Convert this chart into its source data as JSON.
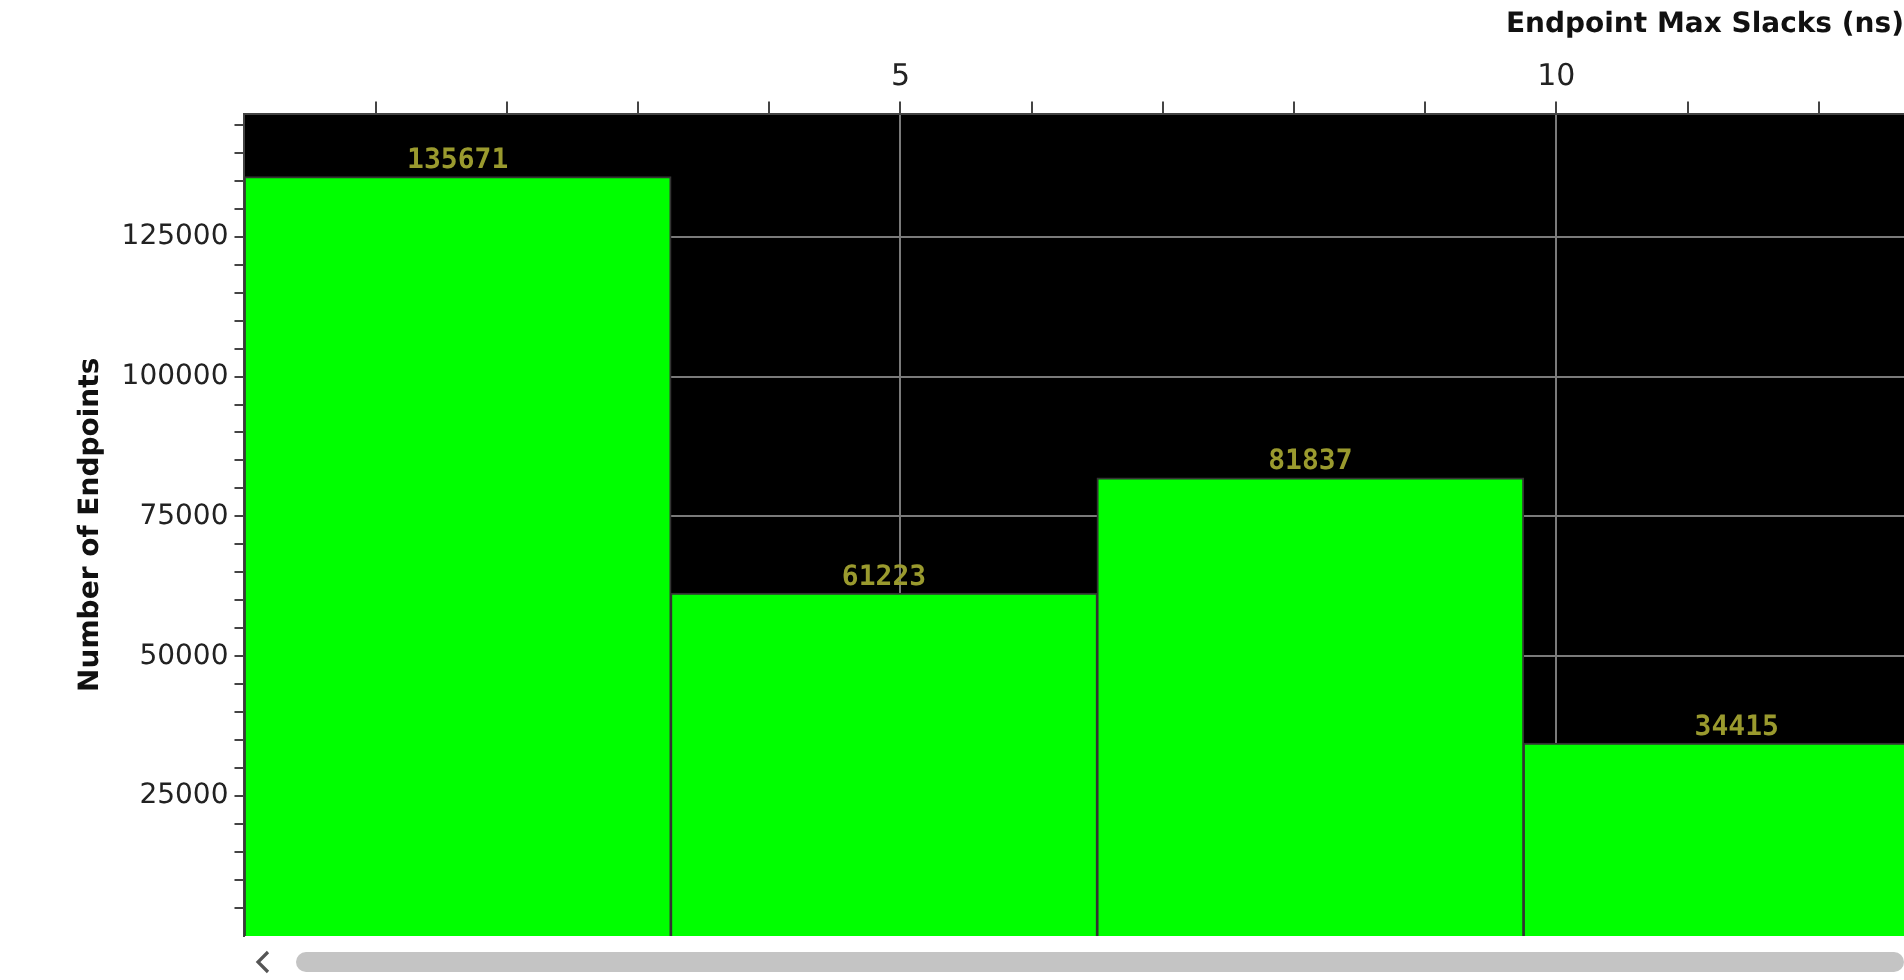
{
  "chart_data": {
    "type": "histogram",
    "xlabel": "Endpoint Max Slacks (ns)",
    "ylabel": "Number of Endpoints",
    "bins": [
      0,
      3.25,
      6.5,
      9.75,
      13
    ],
    "values": [
      135671,
      61223,
      81837,
      34415
    ],
    "color": "#00ff00",
    "data_labels": true,
    "xlim": [
      0,
      12.65
    ],
    "xticks": [
      {
        "value": 1,
        "label": null
      },
      {
        "value": 2,
        "label": null
      },
      {
        "value": 3,
        "label": null
      },
      {
        "value": 4,
        "label": null
      },
      5,
      {
        "value": 6,
        "label": null
      },
      {
        "value": 7,
        "label": null
      },
      {
        "value": 8,
        "label": null
      },
      {
        "value": 9,
        "label": null
      },
      10,
      {
        "value": 11,
        "label": null
      },
      {
        "value": 12,
        "label": null
      }
    ],
    "ylim": [
      0,
      147000
    ],
    "yticks": [
      {
        "value": 5000,
        "label": null
      },
      {
        "value": 10000,
        "label": null
      },
      {
        "value": 15000,
        "label": null
      },
      {
        "value": 20000,
        "label": null
      },
      25000,
      {
        "value": 30000,
        "label": null
      },
      {
        "value": 35000,
        "label": null
      },
      {
        "value": 40000,
        "label": null
      },
      {
        "value": 45000,
        "label": null
      },
      50000,
      {
        "value": 55000,
        "label": null
      },
      {
        "value": 60000,
        "label": null
      },
      {
        "value": 65000,
        "label": null
      },
      {
        "value": 70000,
        "label": null
      },
      75000,
      {
        "value": 80000,
        "label": null
      },
      {
        "value": 85000,
        "label": null
      },
      {
        "value": 90000,
        "label": null
      },
      {
        "value": 95000,
        "label": null
      },
      100000,
      {
        "value": 105000,
        "label": null
      },
      {
        "value": 110000,
        "label": null
      },
      {
        "value": 115000,
        "label": null
      },
      {
        "value": 120000,
        "label": null
      },
      125000,
      {
        "value": 130000,
        "label": null
      },
      {
        "value": 135000,
        "label": null
      },
      {
        "value": 140000,
        "label": null
      },
      {
        "value": 145000,
        "label": null
      }
    ],
    "grid": true
  }
}
